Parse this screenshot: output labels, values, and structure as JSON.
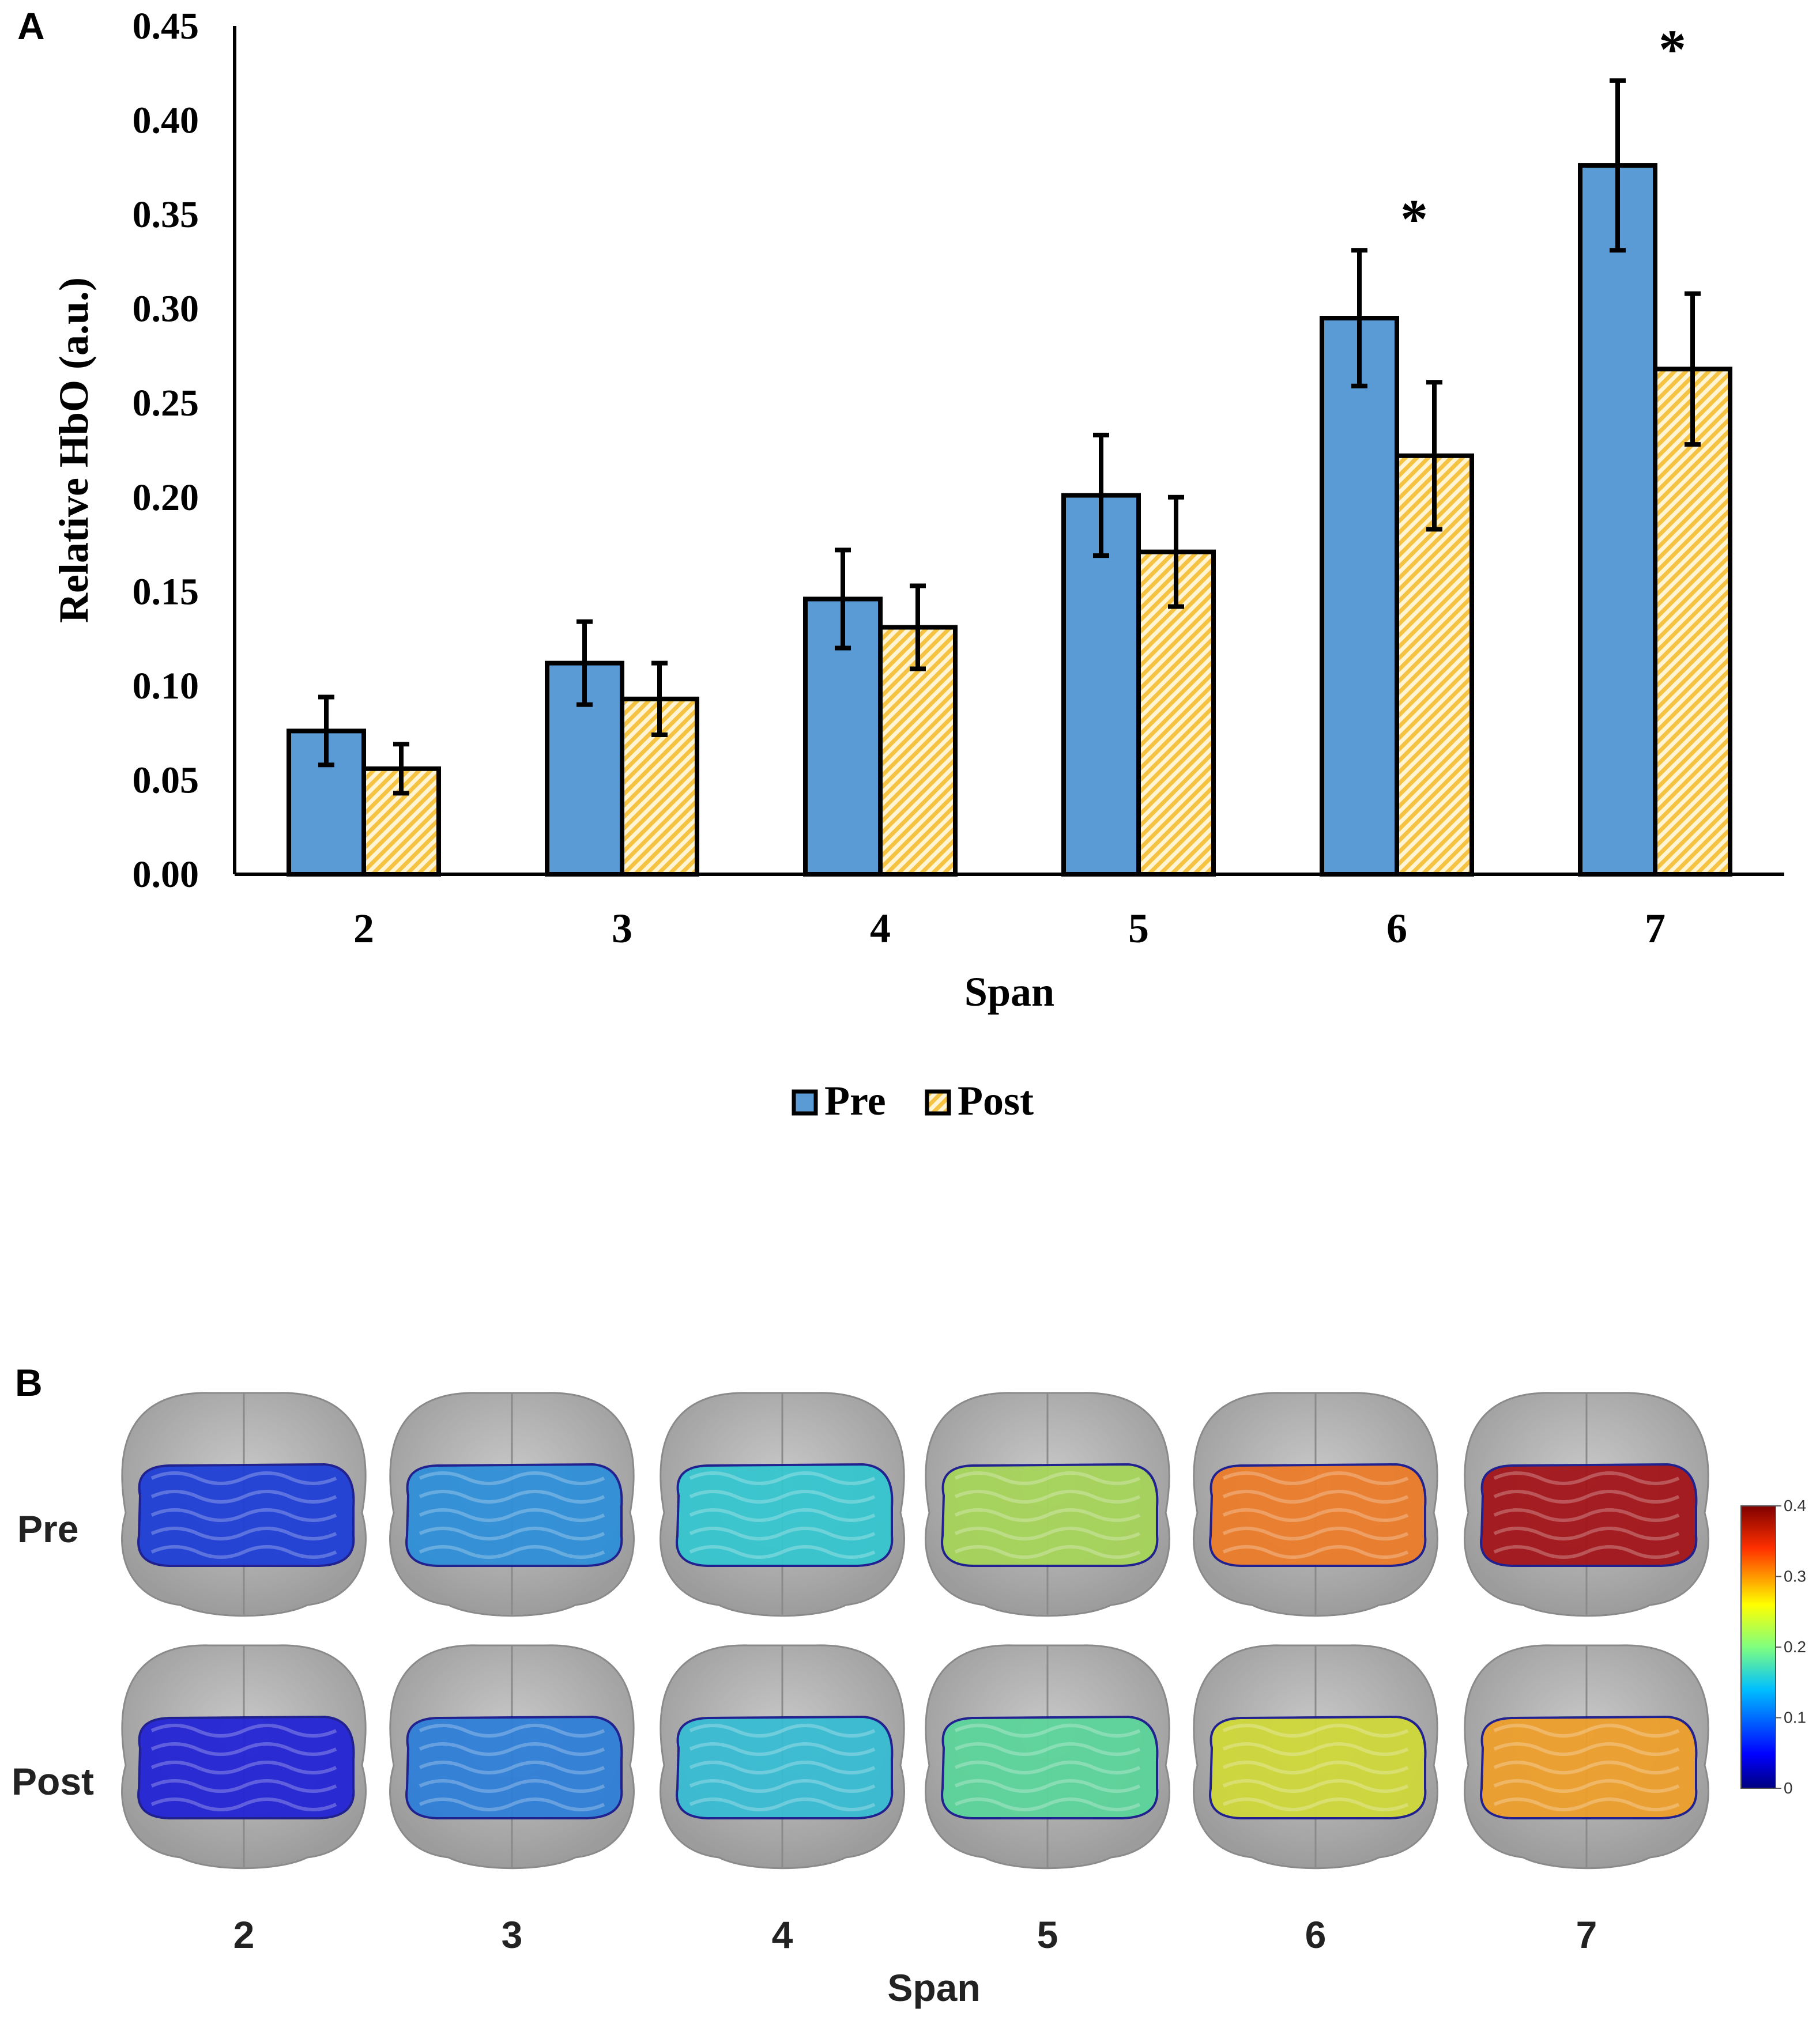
{
  "panel_a": {
    "label": "A",
    "chart_data": {
      "type": "bar",
      "title": "",
      "xlabel": "Span",
      "ylabel": "Relative HbO (a.u.)",
      "categories": [
        "2",
        "3",
        "4",
        "5",
        "6",
        "7"
      ],
      "ylim": [
        0,
        0.45
      ],
      "yticks": [
        "0.00",
        "0.05",
        "0.10",
        "0.15",
        "0.20",
        "0.25",
        "0.30",
        "0.35",
        "0.40",
        "0.45"
      ],
      "grid": false,
      "legend_position": "bottom-center",
      "series": [
        {
          "name": "Pre",
          "color": "#5b9bd5",
          "values": [
            0.076,
            0.112,
            0.146,
            0.201,
            0.295,
            0.376
          ],
          "errors": [
            0.018,
            0.022,
            0.026,
            0.032,
            0.036,
            0.045
          ]
        },
        {
          "name": "Post",
          "color": "#f5c242",
          "pattern": "hatched",
          "values": [
            0.056,
            0.093,
            0.131,
            0.171,
            0.222,
            0.268
          ],
          "errors": [
            0.013,
            0.019,
            0.022,
            0.029,
            0.039,
            0.04
          ]
        }
      ],
      "annotations": [
        {
          "category": "6",
          "text": "*"
        },
        {
          "category": "7",
          "text": "*"
        }
      ]
    }
  },
  "panel_b": {
    "label": "B",
    "row_labels": [
      "Pre",
      "Post"
    ],
    "column_labels": [
      "2",
      "3",
      "4",
      "5",
      "6",
      "7"
    ],
    "xlabel": "Span",
    "colorbar": {
      "ticks": [
        "0.4",
        "0.3",
        "0.2",
        "0.1",
        "0"
      ],
      "range": [
        0,
        0.4
      ],
      "colormap": [
        "#00007f",
        "#0000ff",
        "#00bfff",
        "#40e0d0",
        "#7fff7f",
        "#ffff00",
        "#ff7f00",
        "#ff0000",
        "#7f0000"
      ]
    },
    "maps": {
      "Pre": [
        {
          "span": "2",
          "value": 0.05,
          "color": "#1f3fd6"
        },
        {
          "span": "3",
          "value": 0.12,
          "color": "#2f8fd8"
        },
        {
          "span": "4",
          "value": 0.16,
          "color": "#36c6cf"
        },
        {
          "span": "5",
          "value": 0.22,
          "color": "#a6d45a"
        },
        {
          "span": "6",
          "value": 0.32,
          "color": "#ec7d2a"
        },
        {
          "span": "7",
          "value": 0.4,
          "color": "#a3151a"
        }
      ],
      "Post": [
        {
          "span": "2",
          "value": 0.04,
          "color": "#2424d6"
        },
        {
          "span": "3",
          "value": 0.1,
          "color": "#2f7fd8"
        },
        {
          "span": "4",
          "value": 0.15,
          "color": "#38bcd2"
        },
        {
          "span": "5",
          "value": 0.18,
          "color": "#5cd49a"
        },
        {
          "span": "6",
          "value": 0.24,
          "color": "#cfd83a"
        },
        {
          "span": "7",
          "value": 0.28,
          "color": "#ee9f2c"
        }
      ]
    }
  }
}
